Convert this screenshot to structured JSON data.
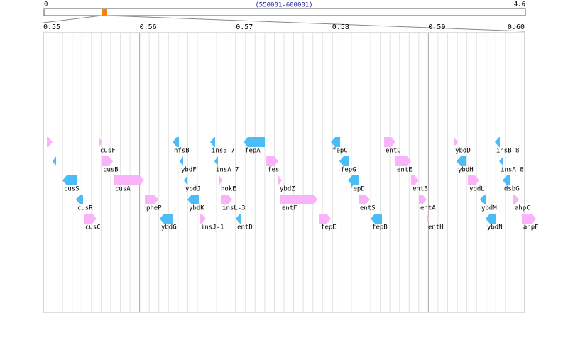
{
  "chart_data": {
    "type": "gene-map",
    "overview": {
      "xlim": [
        0,
        4.6
      ],
      "xticks": [
        0,
        4.6
      ],
      "range_label": "(550001-600001)",
      "highlight_color": "#ff8000"
    },
    "xlim": [
      0.55,
      0.6
    ],
    "xticks": [
      0.55,
      0.56,
      0.57,
      0.58,
      0.59,
      {
        "value": 0.6,
        "label": "0.60"
      }
    ],
    "minor_xticks": [
      0.551,
      0.552,
      0.553,
      0.554,
      0.555,
      0.556,
      0.557,
      0.558,
      0.559,
      0.561,
      0.562,
      0.563,
      0.564,
      0.565,
      0.566,
      0.567,
      0.568,
      0.569,
      0.571,
      0.572,
      0.573,
      0.574,
      0.575,
      0.576,
      0.577,
      0.578,
      0.579,
      0.581,
      0.582,
      0.583,
      0.584,
      0.585,
      0.586,
      0.587,
      0.588,
      0.589,
      0.591,
      0.592,
      0.593,
      0.594,
      0.595,
      0.596,
      0.597,
      0.598,
      0.599
    ],
    "grid": true,
    "colors": {
      "+": "#f9b3f9",
      "-": "#4cbcf6"
    },
    "genes": [
      {
        "name": null,
        "start": 0.55037,
        "end": 0.55096,
        "strand": "+"
      },
      {
        "name": null,
        "start": 0.55096,
        "end": 0.55133,
        "strand": "-"
      },
      {
        "name": "cusS",
        "start": 0.55199,
        "end": 0.55347,
        "strand": "-"
      },
      {
        "name": "cusR",
        "start": 0.55339,
        "end": 0.55413,
        "strand": "-"
      },
      {
        "name": "cusC",
        "start": 0.5542,
        "end": 0.55553,
        "strand": "+"
      },
      {
        "name": "cusF",
        "start": 0.55575,
        "end": 0.55612,
        "strand": "+"
      },
      {
        "name": "cusB",
        "start": 0.55605,
        "end": 0.55723,
        "strand": "+"
      },
      {
        "name": "cusA",
        "start": 0.5573,
        "end": 0.56047,
        "strand": "+"
      },
      {
        "name": "pheP",
        "start": 0.56055,
        "end": 0.56195,
        "strand": "+"
      },
      {
        "name": "ybdG",
        "start": 0.56209,
        "end": 0.56342,
        "strand": "-"
      },
      {
        "name": "nfsB",
        "start": 0.56342,
        "end": 0.56409,
        "strand": "-"
      },
      {
        "name": "ybdF",
        "start": 0.56416,
        "end": 0.56453,
        "strand": "-"
      },
      {
        "name": "ybdJ",
        "start": 0.5646,
        "end": 0.56497,
        "strand": "-"
      },
      {
        "name": "ybdK",
        "start": 0.56497,
        "end": 0.56615,
        "strand": "-"
      },
      {
        "name": "insJ-1",
        "start": 0.56622,
        "end": 0.56689,
        "strand": "+"
      },
      {
        "name": "insB-7",
        "start": 0.56733,
        "end": 0.56785,
        "strand": "-"
      },
      {
        "name": "insA-7",
        "start": 0.56777,
        "end": 0.56814,
        "strand": "-"
      },
      {
        "name": "hokE",
        "start": 0.56829,
        "end": 0.56858,
        "strand": "+"
      },
      {
        "name": "insL-3",
        "start": 0.56844,
        "end": 0.56962,
        "strand": "+"
      },
      {
        "name": "entD",
        "start": 0.56999,
        "end": 0.5705,
        "strand": "-"
      },
      {
        "name": "fepA",
        "start": 0.5708,
        "end": 0.57301,
        "strand": "-"
      },
      {
        "name": "fes",
        "start": 0.57316,
        "end": 0.57441,
        "strand": "+"
      },
      {
        "name": "ybdZ",
        "start": 0.57441,
        "end": 0.57478,
        "strand": "+"
      },
      {
        "name": "entF",
        "start": 0.57463,
        "end": 0.57847,
        "strand": "+"
      },
      {
        "name": "fepE",
        "start": 0.57869,
        "end": 0.57987,
        "strand": "+"
      },
      {
        "name": "fepC",
        "start": 0.57987,
        "end": 0.58083,
        "strand": "-"
      },
      {
        "name": "fepG",
        "start": 0.58075,
        "end": 0.58171,
        "strand": "-"
      },
      {
        "name": "fepD",
        "start": 0.58164,
        "end": 0.58274,
        "strand": "-"
      },
      {
        "name": "entS",
        "start": 0.58274,
        "end": 0.58392,
        "strand": "+"
      },
      {
        "name": "fepB",
        "start": 0.584,
        "end": 0.58518,
        "strand": "-"
      },
      {
        "name": "entC",
        "start": 0.5854,
        "end": 0.58658,
        "strand": "+"
      },
      {
        "name": "entE",
        "start": 0.58658,
        "end": 0.5882,
        "strand": "+"
      },
      {
        "name": "entB",
        "start": 0.5882,
        "end": 0.58901,
        "strand": "+"
      },
      {
        "name": "entA",
        "start": 0.58901,
        "end": 0.58982,
        "strand": "+"
      },
      {
        "name": "entH",
        "start": 0.58982,
        "end": 0.59012,
        "strand": "+"
      },
      {
        "name": "ybdD",
        "start": 0.59263,
        "end": 0.59307,
        "strand": "+"
      },
      {
        "name": "ybdH",
        "start": 0.59292,
        "end": 0.59395,
        "strand": "-"
      },
      {
        "name": "ybdL",
        "start": 0.5941,
        "end": 0.59528,
        "strand": "+"
      },
      {
        "name": "ybdM",
        "start": 0.59535,
        "end": 0.59602,
        "strand": "-"
      },
      {
        "name": "ybdN",
        "start": 0.59594,
        "end": 0.59698,
        "strand": "-"
      },
      {
        "name": "insB-8",
        "start": 0.5969,
        "end": 0.59742,
        "strand": "-"
      },
      {
        "name": "insA-8",
        "start": 0.59735,
        "end": 0.59779,
        "strand": "-"
      },
      {
        "name": "dsbG",
        "start": 0.59771,
        "end": 0.59853,
        "strand": "-"
      },
      {
        "name": "ahpC",
        "start": 0.59882,
        "end": 0.59941,
        "strand": "+"
      },
      {
        "name": "ahpF",
        "start": 0.5997,
        "end": 0.60118,
        "strand": "+"
      }
    ]
  }
}
